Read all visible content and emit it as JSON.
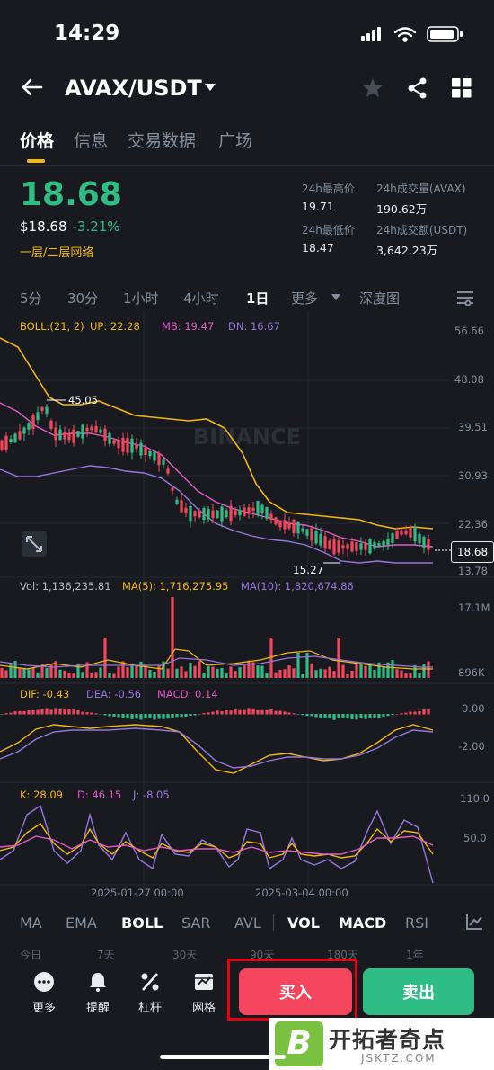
{
  "status": {
    "time": "14:29"
  },
  "header": {
    "pair": "AVAX/USDT"
  },
  "tabs": [
    "价格",
    "信息",
    "交易数据",
    "广场"
  ],
  "ticker": {
    "last_price": "18.68",
    "usd_price": "$18.68",
    "change_pct": "-3.21%",
    "layer_tag": "一层/二层网络",
    "high_label": "24h最高价",
    "high": "19.71",
    "low_label": "24h最低价",
    "low": "18.47",
    "vol_label": "24h成交量(AVAX)",
    "vol": "190.62万",
    "turnover_label": "24h成交额(USDT)",
    "turnover": "3,642.23万"
  },
  "intervals": [
    "5分",
    "30分",
    "1小时",
    "4小时",
    "1日",
    "更多",
    "深度图"
  ],
  "chart": {
    "boll_label": "BOLL:(21, 2)",
    "boll_up": "UP: 22.28",
    "boll_mb": "MB: 19.47",
    "boll_dn": "DN: 16.67",
    "price_axis": [
      "56.66",
      "48.08",
      "39.51",
      "30.93",
      "22.36",
      "13.78"
    ],
    "current_tag": "18.68",
    "high_mark": "45.05",
    "low_mark": "15.27",
    "watermark": "BINANCE",
    "vol_label": "Vol: 1,136,235.81",
    "vol_ma5": "MA(5): 1,716,275.95",
    "vol_ma10": "MA(10): 1,820,674.86",
    "vol_axis": [
      "17.1M",
      "896K"
    ],
    "macd_dif": "DIF: -0.43",
    "macd_dea": "DEA: -0.56",
    "macd_val": "MACD: 0.14",
    "macd_axis": [
      "0.00",
      "-2.00"
    ],
    "kdj_k": "K: 28.09",
    "kdj_d": "D: 46.15",
    "kdj_j": "J: -8.05",
    "kdj_axis": [
      "110.0",
      "50.0"
    ],
    "dates": [
      "2025-01-27 00:00",
      "2025-03-04 00:00"
    ]
  },
  "indicators": [
    "MA",
    "EMA",
    "BOLL",
    "SAR",
    "AVL",
    "VOL",
    "MACD",
    "RSI"
  ],
  "ranges": [
    "今日",
    "7天",
    "30天",
    "90天",
    "180天",
    "1年"
  ],
  "bottom": {
    "more": "更多",
    "alert": "提醒",
    "leverage": "杠杆",
    "grid": "网格",
    "buy": "买入",
    "sell": "卖出"
  },
  "watermark_site": {
    "logo": "B",
    "title": "开拓者奇点",
    "sub": "JSKTZ.COM"
  },
  "colors": {
    "up": "#2ebd85",
    "down": "#f6465d",
    "accent": "#f0b90b"
  }
}
